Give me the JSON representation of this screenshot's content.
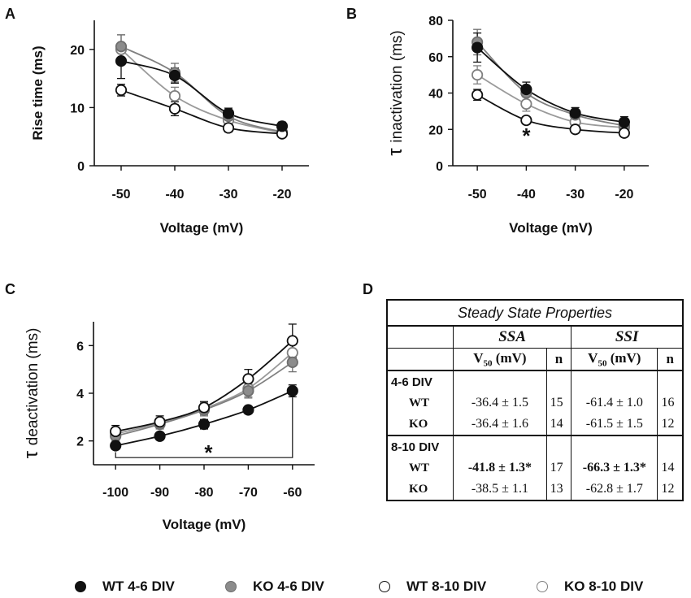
{
  "panel_labels": {
    "a": "A",
    "b": "B",
    "c": "C",
    "d": "D"
  },
  "series_styles": [
    {
      "name": "WT 4-6 DIV",
      "fill": "#111111",
      "stroke": "#111111",
      "line": "#111111"
    },
    {
      "name": "KO 4-6 DIV",
      "fill": "#8c8c8c",
      "stroke": "#6e6e6e",
      "line": "#808080"
    },
    {
      "name": "WT 8-10 DIV",
      "fill": "#ffffff",
      "stroke": "#111111",
      "line": "#111111"
    },
    {
      "name": "KO 8-10 DIV",
      "fill": "#ffffff",
      "stroke": "#808080",
      "line": "#9a9a9a"
    }
  ],
  "chart_data": [
    {
      "id": "A",
      "type": "line",
      "xlabel": "Voltage (mV)",
      "ylabel": "Rise time (ms)",
      "x": [
        -50,
        -40,
        -30,
        -20
      ],
      "xlim": [
        -55,
        -15
      ],
      "xticks": [
        -50,
        -40,
        -30,
        -20
      ],
      "ylim": [
        0,
        25
      ],
      "yticks": [
        0,
        10,
        20
      ],
      "series": [
        {
          "name": "WT 4-6 DIV",
          "values": [
            18.0,
            15.5,
            9.0,
            6.8
          ],
          "errors": [
            3.0,
            1.3,
            0.9,
            0.7
          ]
        },
        {
          "name": "KO 4-6 DIV",
          "values": [
            20.5,
            16.0,
            8.5,
            5.8
          ],
          "errors": [
            2.0,
            1.6,
            0.8,
            0.6
          ]
        },
        {
          "name": "WT 8-10 DIV",
          "values": [
            13.0,
            9.8,
            6.5,
            5.5
          ],
          "errors": [
            1.0,
            1.2,
            0.7,
            0.5
          ]
        },
        {
          "name": "KO 8-10 DIV",
          "values": [
            20.0,
            12.0,
            7.8,
            5.7
          ],
          "errors": [
            2.5,
            1.5,
            0.9,
            0.6
          ]
        }
      ],
      "annotations": []
    },
    {
      "id": "B",
      "type": "line",
      "xlabel": "Voltage (mV)",
      "ylabel": "inactivation (ms)",
      "ylabel_symbol": "τ",
      "x": [
        -50,
        -40,
        -30,
        -20
      ],
      "xlim": [
        -55,
        -15
      ],
      "xticks": [
        -50,
        -40,
        -30,
        -20
      ],
      "ylim": [
        0,
        80
      ],
      "yticks": [
        0,
        20,
        40,
        60,
        80
      ],
      "series": [
        {
          "name": "WT 4-6 DIV",
          "values": [
            65,
            42,
            29,
            24
          ],
          "errors": [
            8,
            4,
            3,
            3
          ]
        },
        {
          "name": "KO 4-6 DIV",
          "values": [
            68,
            40,
            28,
            22
          ],
          "errors": [
            7,
            4,
            3,
            2
          ]
        },
        {
          "name": "WT 8-10 DIV",
          "values": [
            39,
            25,
            20,
            18
          ],
          "errors": [
            3,
            2,
            2,
            2
          ]
        },
        {
          "name": "KO 8-10 DIV",
          "values": [
            50,
            34,
            24,
            21
          ],
          "errors": [
            5,
            4,
            3,
            2
          ]
        }
      ],
      "annotations": [
        {
          "text": "*",
          "x": -40,
          "y": 17
        }
      ]
    },
    {
      "id": "C",
      "type": "line",
      "xlabel": "Voltage (mV)",
      "ylabel": "deactivation (ms)",
      "ylabel_symbol": "τ",
      "x": [
        -100,
        -90,
        -80,
        -70,
        -60
      ],
      "xlim": [
        -105,
        -55
      ],
      "xticks": [
        -100,
        -90,
        -80,
        -70,
        -60
      ],
      "ylim": [
        1,
        7
      ],
      "yticks": [
        2,
        4,
        6
      ],
      "series": [
        {
          "name": "WT 4-6 DIV",
          "values": [
            1.8,
            2.2,
            2.7,
            3.3,
            4.1
          ],
          "errors": [
            0.15,
            0.15,
            0.2,
            0.15,
            0.25
          ]
        },
        {
          "name": "KO 4-6 DIV",
          "values": [
            2.2,
            2.7,
            3.3,
            4.1,
            5.3
          ],
          "errors": [
            0.2,
            0.2,
            0.25,
            0.3,
            0.4
          ]
        },
        {
          "name": "WT 8-10 DIV",
          "values": [
            2.4,
            2.8,
            3.4,
            4.6,
            6.2
          ],
          "errors": [
            0.25,
            0.25,
            0.25,
            0.4,
            0.7
          ]
        },
        {
          "name": "KO 8-10 DIV",
          "values": [
            2.3,
            2.75,
            3.35,
            4.2,
            5.7
          ],
          "errors": [
            0.2,
            0.2,
            0.25,
            0.35,
            0.5
          ]
        }
      ],
      "annotations": [
        {
          "text": "*",
          "x": -79,
          "y": 1.55
        }
      ],
      "bracket": {
        "x1": -100,
        "x2": -60,
        "y": 1.3
      }
    }
  ],
  "table": {
    "title": "Steady State Properties",
    "group_headers": [
      "SSA",
      "SSI"
    ],
    "sub_headers": {
      "v50": "V",
      "v50_sub": "50",
      "v50_unit": " (mV)",
      "n": "n"
    },
    "groups": [
      {
        "label": "4-6 DIV",
        "rows": [
          {
            "cond": "WT",
            "ssa_v50": "-36.4 ± 1.5",
            "ssa_n": "15",
            "ssi_v50": "-61.4 ± 1.0",
            "ssi_n": "16"
          },
          {
            "cond": "KO",
            "ssa_v50": "-36.4 ± 1.6",
            "ssa_n": "14",
            "ssi_v50": "-61.5 ± 1.5",
            "ssi_n": "12"
          }
        ]
      },
      {
        "label": "8-10 DIV",
        "rows": [
          {
            "cond": "WT",
            "ssa_v50": "-41.8 ± 1.3*",
            "ssa_n": "17",
            "ssi_v50": "-66.3 ± 1.3*",
            "ssi_n": "14"
          },
          {
            "cond": "KO",
            "ssa_v50": "-38.5 ± 1.1",
            "ssa_n": "13",
            "ssi_v50": "-62.8 ± 1.7",
            "ssi_n": "12"
          }
        ]
      }
    ]
  },
  "legend": [
    "WT 4-6 DIV",
    "KO 4-6 DIV",
    "WT 8-10 DIV",
    "KO 8-10 DIV"
  ]
}
